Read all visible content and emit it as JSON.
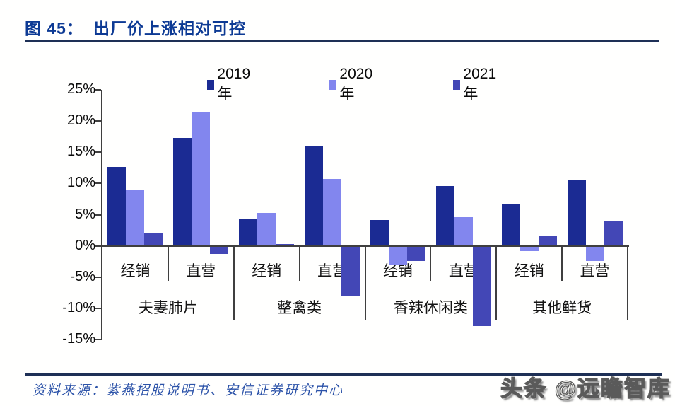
{
  "header": {
    "figure_label": "图 45：",
    "figure_title": "出厂价上涨相对可控"
  },
  "source": {
    "label": "资料来源：",
    "text": "紫燕招股说明书、安信证券研究中心"
  },
  "watermark": "头条 @远瞻智库",
  "colors": {
    "title_blue": "#0d3a94",
    "rule_navy": "#1e3056",
    "source_blue": "#2b52a8",
    "axis_gray": "#3f3f3f",
    "series_2019": "#1b2b93",
    "series_2020": "#8286ee",
    "series_2021": "#4347b6"
  },
  "chart_data": {
    "type": "bar",
    "title": "出厂价上涨相对可控",
    "groups": [
      "夫妻肺片",
      "整禽类",
      "香辣休闲类",
      "其他鲜货"
    ],
    "subcategories_per_group": [
      "经销",
      "直营"
    ],
    "categories": [
      "夫妻肺片·经销",
      "夫妻肺片·直营",
      "整禽类·经销",
      "整禽类·直营",
      "香辣休闲类·经销",
      "香辣休闲类·直营",
      "其他鲜货·经销",
      "其他鲜货·直营"
    ],
    "series": [
      {
        "name": "2019年",
        "color": "#1b2b93",
        "values": [
          12.7,
          17.3,
          4.4,
          16.0,
          4.2,
          9.6,
          6.7,
          10.5
        ]
      },
      {
        "name": "2020年",
        "color": "#8286ee",
        "values": [
          9.0,
          21.5,
          5.3,
          10.7,
          -3.0,
          4.6,
          -0.7,
          -2.3
        ]
      },
      {
        "name": "2021年",
        "color": "#4347b6",
        "values": [
          2.0,
          -1.2,
          0.3,
          -8.0,
          -2.3,
          -12.7,
          1.5,
          3.9
        ]
      }
    ],
    "ylim": [
      -15,
      25
    ],
    "ytick_step": 5,
    "ytick_labels": [
      "25%",
      "20%",
      "15%",
      "10%",
      "5%",
      "0%",
      "-5%",
      "-10%",
      "-15%"
    ],
    "unit": "%",
    "grid": false,
    "legend_position": "top"
  }
}
